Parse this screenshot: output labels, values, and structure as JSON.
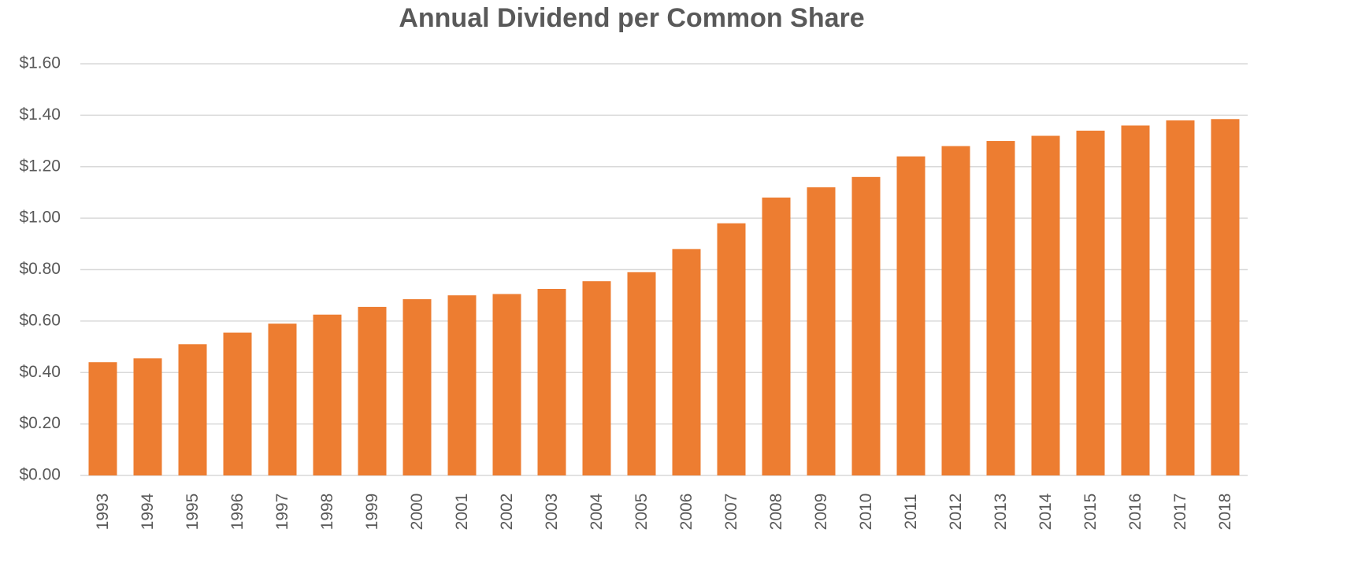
{
  "chart_data": {
    "type": "bar",
    "title": "Annual Dividend per Common Share",
    "categories": [
      "1993",
      "1994",
      "1995",
      "1996",
      "1997",
      "1998",
      "1999",
      "2000",
      "2001",
      "2002",
      "2003",
      "2004",
      "2005",
      "2006",
      "2007",
      "2008",
      "2009",
      "2010",
      "2011",
      "2012",
      "2013",
      "2014",
      "2015",
      "2016",
      "2017",
      "2018"
    ],
    "values": [
      0.44,
      0.455,
      0.51,
      0.555,
      0.59,
      0.625,
      0.655,
      0.685,
      0.7,
      0.705,
      0.725,
      0.755,
      0.79,
      0.88,
      0.98,
      1.08,
      1.12,
      1.16,
      1.24,
      1.28,
      1.3,
      1.32,
      1.34,
      1.36,
      1.38,
      1.385
    ],
    "color": "#ed7d31",
    "ylim": [
      0,
      1.6
    ],
    "yticks": [
      {
        "value": 0,
        "label": "$0.00"
      },
      {
        "value": 0.2,
        "label": "$0.20"
      },
      {
        "value": 0.4,
        "label": "$0.40"
      },
      {
        "value": 0.6,
        "label": "$0.60"
      },
      {
        "value": 0.8,
        "label": "$0.80"
      },
      {
        "value": 1.0,
        "label": "$1.00"
      },
      {
        "value": 1.2,
        "label": "$1.20"
      },
      {
        "value": 1.4,
        "label": "$1.40"
      },
      {
        "value": 1.6,
        "label": "$1.60"
      }
    ],
    "grid": true
  }
}
